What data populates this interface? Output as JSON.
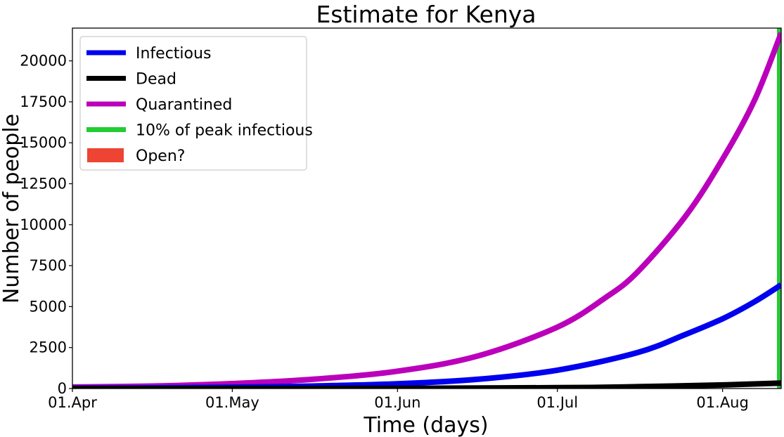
{
  "chart_data": {
    "type": "line",
    "title": "Estimate for Kenya",
    "xlabel": "Time (days)",
    "ylabel": "Number of people",
    "x_ticks": [
      "01.Apr",
      "01.May",
      "01.Jun",
      "01.Jul",
      "01.Aug"
    ],
    "x_tick_days": [
      0,
      30,
      61,
      91,
      122
    ],
    "xlim": [
      0,
      133
    ],
    "ylim": [
      0,
      22000
    ],
    "y_ticks": [
      0,
      2500,
      5000,
      7500,
      10000,
      12500,
      15000,
      17500,
      20000
    ],
    "grid": false,
    "legend": "top-left",
    "series": [
      {
        "name": "Infectious",
        "color": "#0000ee",
        "x": [
          0,
          15,
          30,
          45,
          61,
          76,
          91,
          106,
          115,
          122,
          128,
          133
        ],
        "y": [
          20,
          45,
          80,
          150,
          290,
          560,
          1120,
          2190,
          3300,
          4260,
          5300,
          6330
        ]
      },
      {
        "name": "Dead",
        "color": "#000000",
        "x": [
          0,
          30,
          61,
          91,
          106,
          122,
          133
        ],
        "y": [
          0,
          3,
          12,
          50,
          110,
          220,
          330
        ]
      },
      {
        "name": "Quarantined",
        "color": "#bb00bb",
        "x": [
          0,
          15,
          30,
          45,
          61,
          76,
          91,
          100,
          106,
          115,
          122,
          128,
          133
        ],
        "y": [
          90,
          150,
          300,
          560,
          1060,
          1980,
          3750,
          5540,
          7100,
          10500,
          14000,
          17600,
          21700
        ]
      },
      {
        "name": "10% of peak infectious",
        "color": "#22cc33",
        "type": "vline",
        "x": 133
      },
      {
        "name": "Open?",
        "color": "#ee4433",
        "type": "span",
        "x": []
      }
    ]
  }
}
